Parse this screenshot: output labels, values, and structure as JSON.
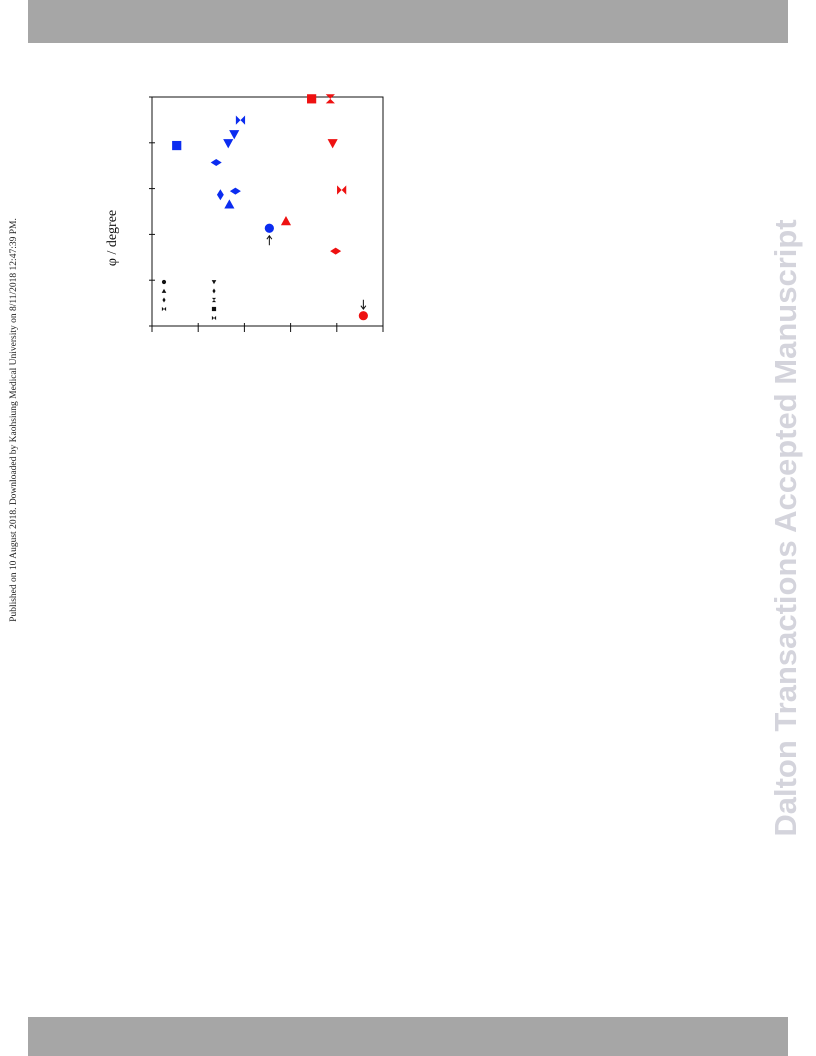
{
  "header_band": "",
  "footer_band": "",
  "side_note": "Published on 10 August 2018. Downloaded by Kaohsiung Medical University on 8/11/2018 12:47:39 PM.",
  "watermark": "Dalton Transactions Accepted Manuscript",
  "colors": {
    "band": "#a6a6a6",
    "blue": "#0b2cf0",
    "red": "#ee1111",
    "watermark": "#d4d4dc"
  },
  "chart_data": {
    "type": "scatter",
    "orientation": "rotated-90",
    "ylabel": "φ / degree",
    "xlim": [
      0,
      100
    ],
    "ylim": [
      0,
      100
    ],
    "x_ticks": [
      0,
      20,
      40,
      60,
      80,
      100
    ],
    "y_ticks": [
      0,
      20,
      40,
      60,
      80,
      100
    ],
    "grid": false,
    "legend_placement": "bottom-left",
    "legend": {
      "column_1": [
        "circle",
        "triangle-up",
        "diamond",
        "bowtie-h"
      ],
      "column_2": [
        "triangle-down",
        "diamond",
        "bowtie-v",
        "square",
        "bowtie-h"
      ]
    },
    "series": [
      {
        "color": "#0b2cf0",
        "points": [
          {
            "x": 10.7,
            "y": 78.8,
            "marker": "square"
          },
          {
            "x": 27.8,
            "y": 71.4,
            "marker": "diamond-h"
          },
          {
            "x": 33.0,
            "y": 79.8,
            "marker": "triangle-down"
          },
          {
            "x": 35.6,
            "y": 83.7,
            "marker": "triangle-down"
          },
          {
            "x": 38.3,
            "y": 89.9,
            "marker": "bowtie-h"
          },
          {
            "x": 29.6,
            "y": 57.3,
            "marker": "diamond"
          },
          {
            "x": 33.5,
            "y": 53.1,
            "marker": "triangle-up"
          },
          {
            "x": 36.1,
            "y": 58.9,
            "marker": "diamond-h"
          },
          {
            "x": 50.8,
            "y": 42.7,
            "marker": "circle",
            "annotation": "arrow-up"
          }
        ]
      },
      {
        "color": "#ee1111",
        "points": [
          {
            "x": 69.1,
            "y": 99.2,
            "marker": "square"
          },
          {
            "x": 77.2,
            "y": 99.2,
            "marker": "bowtie-v"
          },
          {
            "x": 78.2,
            "y": 79.8,
            "marker": "triangle-down"
          },
          {
            "x": 82.1,
            "y": 59.4,
            "marker": "bowtie-h"
          },
          {
            "x": 58.0,
            "y": 45.8,
            "marker": "triangle-up"
          },
          {
            "x": 79.5,
            "y": 32.7,
            "marker": "diamond-h"
          },
          {
            "x": 91.5,
            "y": 4.5,
            "marker": "circle",
            "annotation": "arrow-down"
          }
        ]
      }
    ]
  }
}
